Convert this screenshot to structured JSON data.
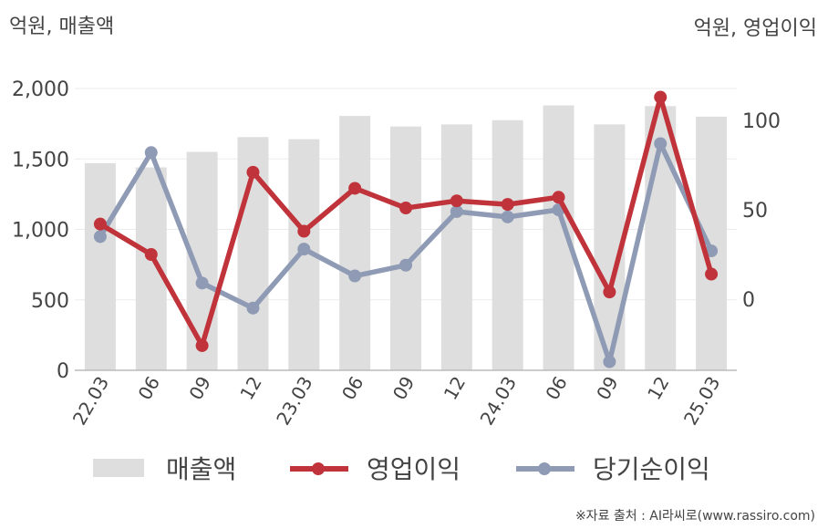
{
  "chart_data": {
    "type": "bar+line",
    "left_axis_unit": "억원, 매출액",
    "right_axis_unit": "억원, 영업이익",
    "categories": [
      "22.03",
      "06",
      "09",
      "12",
      "23.03",
      "06",
      "09",
      "12",
      "24.03",
      "06",
      "09",
      "12",
      "25.03"
    ],
    "y_left": {
      "range": [
        0,
        2000
      ],
      "ticks": [
        "2,000",
        "1,500",
        "1,000",
        "500",
        "0"
      ],
      "tick_values": [
        2000,
        1500,
        1000,
        500,
        0
      ]
    },
    "y_right": {
      "range": [
        -40,
        138
      ],
      "ticks": [
        "100",
        "50",
        "0"
      ],
      "tick_values": [
        100,
        50,
        0
      ]
    },
    "grid": true,
    "legend_position": "bottom",
    "series": [
      {
        "name": "매출액",
        "kind": "bar",
        "axis": "left",
        "color": "#dedede",
        "values": [
          1470,
          1440,
          1550,
          1655,
          1640,
          1805,
          1730,
          1745,
          1775,
          1880,
          1745,
          1875,
          1800
        ]
      },
      {
        "name": "영업이익",
        "kind": "line",
        "axis": "right",
        "color": "#c0333a",
        "values": [
          42,
          25,
          -26,
          71,
          38,
          62,
          51,
          55,
          53,
          57,
          4,
          113,
          14
        ]
      },
      {
        "name": "당기순이익",
        "kind": "line",
        "axis": "right",
        "color": "#8f9bb5",
        "values": [
          35,
          82,
          9,
          -5,
          28,
          13,
          19,
          49,
          46,
          50,
          -35,
          87,
          27
        ]
      }
    ]
  },
  "source_text": "※자료 출처 : AI라씨로(www.rassiro.com)"
}
